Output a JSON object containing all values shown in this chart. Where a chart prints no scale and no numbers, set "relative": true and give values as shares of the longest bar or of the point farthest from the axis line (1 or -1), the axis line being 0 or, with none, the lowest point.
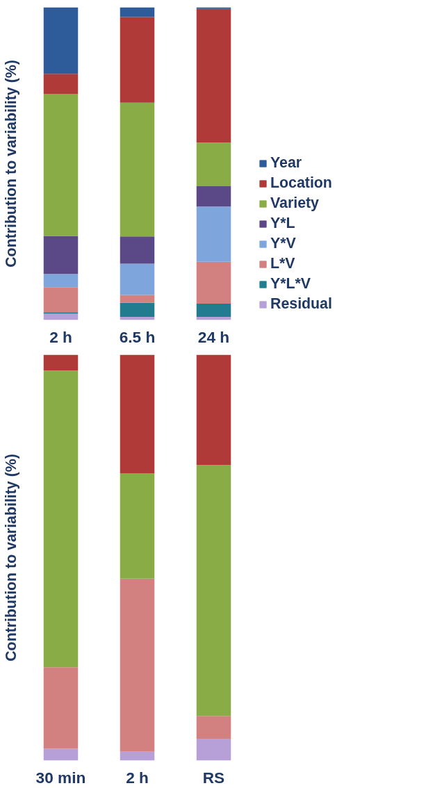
{
  "chart_data": [
    {
      "type": "bar",
      "stacked": true,
      "relative": true,
      "ylabel": "Contribution to variability (%)",
      "categories": [
        "2 h",
        "6.5 h",
        "24 h"
      ],
      "legend": "right",
      "grid": false,
      "series": [
        {
          "name": "Residual",
          "color": "#b79fd8",
          "values": [
            0.02,
            0.01,
            0.01
          ]
        },
        {
          "name": "Y*L*V",
          "color": "#217c8f",
          "values": [
            0.005,
            0.045,
            0.042
          ]
        },
        {
          "name": "L*V",
          "color": "#d38080",
          "values": [
            0.08,
            0.025,
            0.134
          ]
        },
        {
          "name": "Y*V",
          "color": "#7fa6dc",
          "values": [
            0.042,
            0.1,
            0.177
          ]
        },
        {
          "name": "Y*L",
          "color": "#5b4886",
          "values": [
            0.122,
            0.087,
            0.065
          ]
        },
        {
          "name": "Variety",
          "color": "#8aac46",
          "values": [
            0.453,
            0.428,
            0.139
          ]
        },
        {
          "name": "Location",
          "color": "#b03a37",
          "values": [
            0.065,
            0.274,
            0.428
          ]
        },
        {
          "name": "Year",
          "color": "#2e5c9a",
          "values": [
            0.213,
            0.031,
            0.005
          ]
        }
      ]
    },
    {
      "type": "bar",
      "stacked": true,
      "relative": true,
      "ylabel": "Contribution to variability (%)",
      "categories": [
        "30 min",
        "2 h",
        "RS"
      ],
      "grid": false,
      "series": [
        {
          "color": "#b79fd8",
          "values": [
            0.029,
            0.022,
            0.054
          ]
        },
        {
          "color": "#d38080",
          "values": [
            0.201,
            0.426,
            0.056
          ]
        },
        {
          "color": "#8aac46",
          "values": [
            0.731,
            0.26,
            0.618
          ]
        },
        {
          "color": "#b03a37",
          "values": [
            0.039,
            0.292,
            0.272
          ]
        }
      ]
    }
  ]
}
